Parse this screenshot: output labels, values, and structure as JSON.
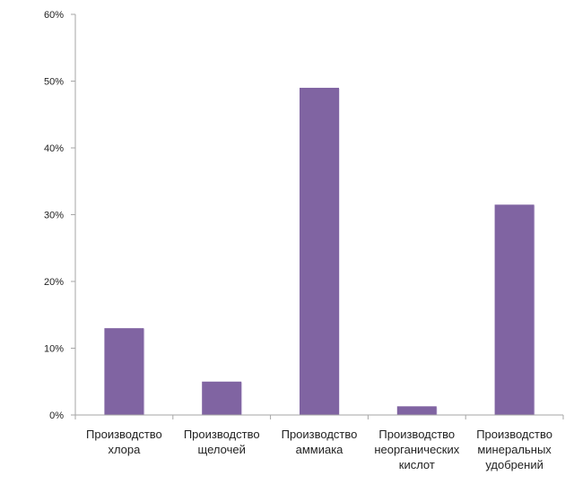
{
  "chart_data": {
    "type": "bar",
    "title": "",
    "xlabel": "",
    "ylabel": "",
    "categories": [
      [
        "Производство",
        "хлора"
      ],
      [
        "Производство",
        "щелочей"
      ],
      [
        "Производство",
        "аммиака"
      ],
      [
        "Производство",
        "неорганических",
        "кислот"
      ],
      [
        "Производство",
        "минеральных",
        "удобрений"
      ]
    ],
    "values": [
      13,
      5,
      49,
      1.3,
      31.5
    ],
    "ylim": [
      0,
      60
    ],
    "yticks": [
      0,
      10,
      20,
      30,
      40,
      50,
      60
    ],
    "ytick_labels": [
      "0%",
      "10%",
      "20%",
      "30%",
      "40%",
      "50%",
      "60%"
    ],
    "grid": false,
    "legend": "none",
    "colors": {
      "bar": "#8064A2",
      "bar_edge": "#E7E0F0",
      "axis": "#A6A6A6",
      "text": "#222222"
    }
  }
}
